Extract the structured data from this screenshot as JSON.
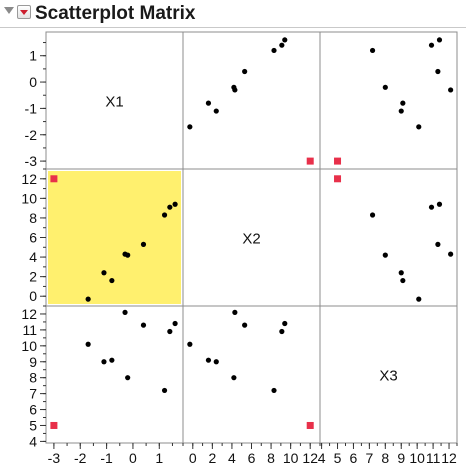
{
  "report": {
    "title": "Scatterplot Matrix"
  },
  "chart_data": {
    "type": "scatter",
    "variables": [
      "X1",
      "X2",
      "X3"
    ],
    "observations": [
      {
        "X1": -1.7,
        "X2": -0.3,
        "X3": 10.1
      },
      {
        "X1": -1.1,
        "X2": 2.4,
        "X3": 9.0
      },
      {
        "X1": -0.8,
        "X2": 1.6,
        "X3": 9.1
      },
      {
        "X1": -0.2,
        "X2": 4.2,
        "X3": 8.0
      },
      {
        "X1": 0.4,
        "X2": 5.3,
        "X3": 11.3
      },
      {
        "X1": 1.6,
        "X2": 9.4,
        "X3": 11.4
      },
      {
        "X1": 1.4,
        "X2": 9.1,
        "X3": 10.9
      },
      {
        "X1": 1.2,
        "X2": 8.3,
        "X3": 7.2
      },
      {
        "X1": -0.3,
        "X2": 4.3,
        "X3": 12.1
      }
    ],
    "excluded_points": [
      {
        "X1": -3,
        "X2": 12,
        "X3": 5
      }
    ],
    "highlighted_cell": {
      "row": "X2",
      "col": "X1"
    },
    "axes": {
      "X1": {
        "ticks": [
          -3,
          -2,
          -1,
          0,
          1
        ],
        "tick_labels": [
          "-3",
          "-2",
          "-1",
          "0",
          "1"
        ],
        "range": [
          -3.3,
          1.9
        ]
      },
      "X2": {
        "ticks": [
          0,
          2,
          4,
          6,
          8,
          10,
          12
        ],
        "tick_labels": [
          "0",
          "2",
          "4",
          "6",
          "8",
          "10",
          "12"
        ],
        "range": [
          -1.0,
          13.0
        ]
      },
      "X3": {
        "ticks": [
          4,
          5,
          6,
          7,
          8,
          9,
          10,
          11,
          12
        ],
        "tick_labels": [
          "4",
          "5",
          "6",
          "7",
          "8",
          "9",
          "10",
          "11",
          "12"
        ],
        "range": [
          3.9,
          12.5
        ]
      }
    },
    "axis_labels": {
      "left": [
        "X1",
        "X2",
        "X3"
      ],
      "bottom": [
        "X1",
        "X2",
        "X3"
      ]
    },
    "colors": {
      "point": "#000000",
      "excluded": "#e8304a",
      "highlight": "#fff06e",
      "grid_border": "#8c8c8c"
    }
  }
}
